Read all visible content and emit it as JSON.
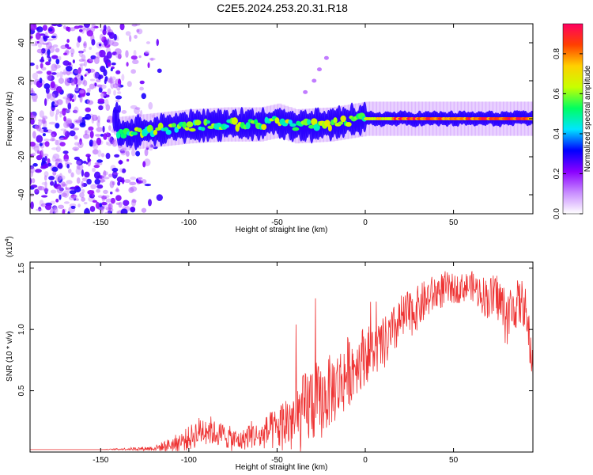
{
  "title": "C2E5.2024.253.20.31.R18",
  "chart_data": [
    {
      "type": "heatmap",
      "xlabel": "Height of straight line (km)",
      "ylabel": "Frequency (Hz)",
      "xlim": [
        -190,
        95
      ],
      "ylim": [
        -50,
        50
      ],
      "x_ticks": [
        -150,
        -100,
        -50,
        0,
        50
      ],
      "y_ticks": [
        -40,
        -20,
        0,
        20,
        40
      ],
      "colorbar": {
        "label": "Normalized spectral amplitude",
        "range": [
          0.0,
          0.95
        ],
        "ticks": [
          "0.0",
          "0.2",
          "0.4",
          "0.6",
          "0.8"
        ],
        "colors": [
          "#ffffff",
          "#c88cff",
          "#8a00ff",
          "#0000ff",
          "#00e5ff",
          "#00ff60",
          "#c8ff00",
          "#ffd000",
          "#ff4000",
          "#ff0060"
        ]
      },
      "ridge": {
        "description_free_points": [
          {
            "x": -140,
            "y": -8
          },
          {
            "x": -120,
            "y": -6
          },
          {
            "x": -100,
            "y": -4
          },
          {
            "x": -80,
            "y": -3
          },
          {
            "x": -60,
            "y": -3
          },
          {
            "x": -50,
            "y": -1
          },
          {
            "x": -40,
            "y": -4
          },
          {
            "x": -20,
            "y": -3
          },
          {
            "x": 0,
            "y": 0
          },
          {
            "x": 20,
            "y": 0
          },
          {
            "x": 50,
            "y": 0
          },
          {
            "x": 95,
            "y": 0
          }
        ],
        "peak_from_km": 15
      },
      "noise_region_x": [
        -190,
        -125
      ],
      "grid": false,
      "legend": "none"
    },
    {
      "type": "line",
      "xlabel": "Height of straight line (km)",
      "ylabel": "SNR (10 * v/v)",
      "y_multiplier": "(x10",
      "y_multiplier_exp": "4",
      "xlim": [
        -190,
        95
      ],
      "ylim": [
        0,
        1.55
      ],
      "x_ticks": [
        -150,
        -100,
        -50,
        0,
        50
      ],
      "y_ticks": [
        0.5,
        1.0,
        1.5
      ],
      "y_tick_labels": [
        "0.5",
        "1.0",
        "1.5"
      ],
      "series": [
        {
          "color": "#ee3333",
          "x": [
            -190,
            -150,
            -120,
            -110,
            -100,
            -95,
            -90,
            -85,
            -80,
            -75,
            -70,
            -65,
            -60,
            -55,
            -50,
            -45,
            -40,
            -35,
            -30,
            -25,
            -20,
            -15,
            -10,
            -5,
            0,
            5,
            10,
            15,
            20,
            25,
            30,
            35,
            40,
            45,
            50,
            55,
            60,
            65,
            70,
            75,
            80,
            85,
            90,
            95
          ],
          "base": [
            0.02,
            0.02,
            0.03,
            0.06,
            0.11,
            0.16,
            0.2,
            0.15,
            0.14,
            0.1,
            0.09,
            0.15,
            0.12,
            0.17,
            0.18,
            0.25,
            0.25,
            0.32,
            0.42,
            0.4,
            0.5,
            0.55,
            0.65,
            0.72,
            0.8,
            0.82,
            0.87,
            0.95,
            1.08,
            1.12,
            1.18,
            1.25,
            1.3,
            1.33,
            1.33,
            1.34,
            1.36,
            1.3,
            1.25,
            1.27,
            1.1,
            1.2,
            1.22,
            0.7
          ],
          "amp": [
            0.0,
            0.0,
            0.02,
            0.06,
            0.1,
            0.12,
            0.14,
            0.1,
            0.1,
            0.1,
            0.08,
            0.12,
            0.1,
            0.15,
            0.18,
            0.25,
            0.3,
            0.32,
            0.35,
            0.3,
            0.3,
            0.3,
            0.3,
            0.25,
            0.25,
            0.2,
            0.22,
            0.22,
            0.2,
            0.2,
            0.18,
            0.17,
            0.15,
            0.15,
            0.12,
            0.12,
            0.12,
            0.15,
            0.18,
            0.2,
            0.25,
            0.2,
            0.2,
            0.2
          ]
        }
      ],
      "grid": false,
      "legend": "none"
    }
  ]
}
